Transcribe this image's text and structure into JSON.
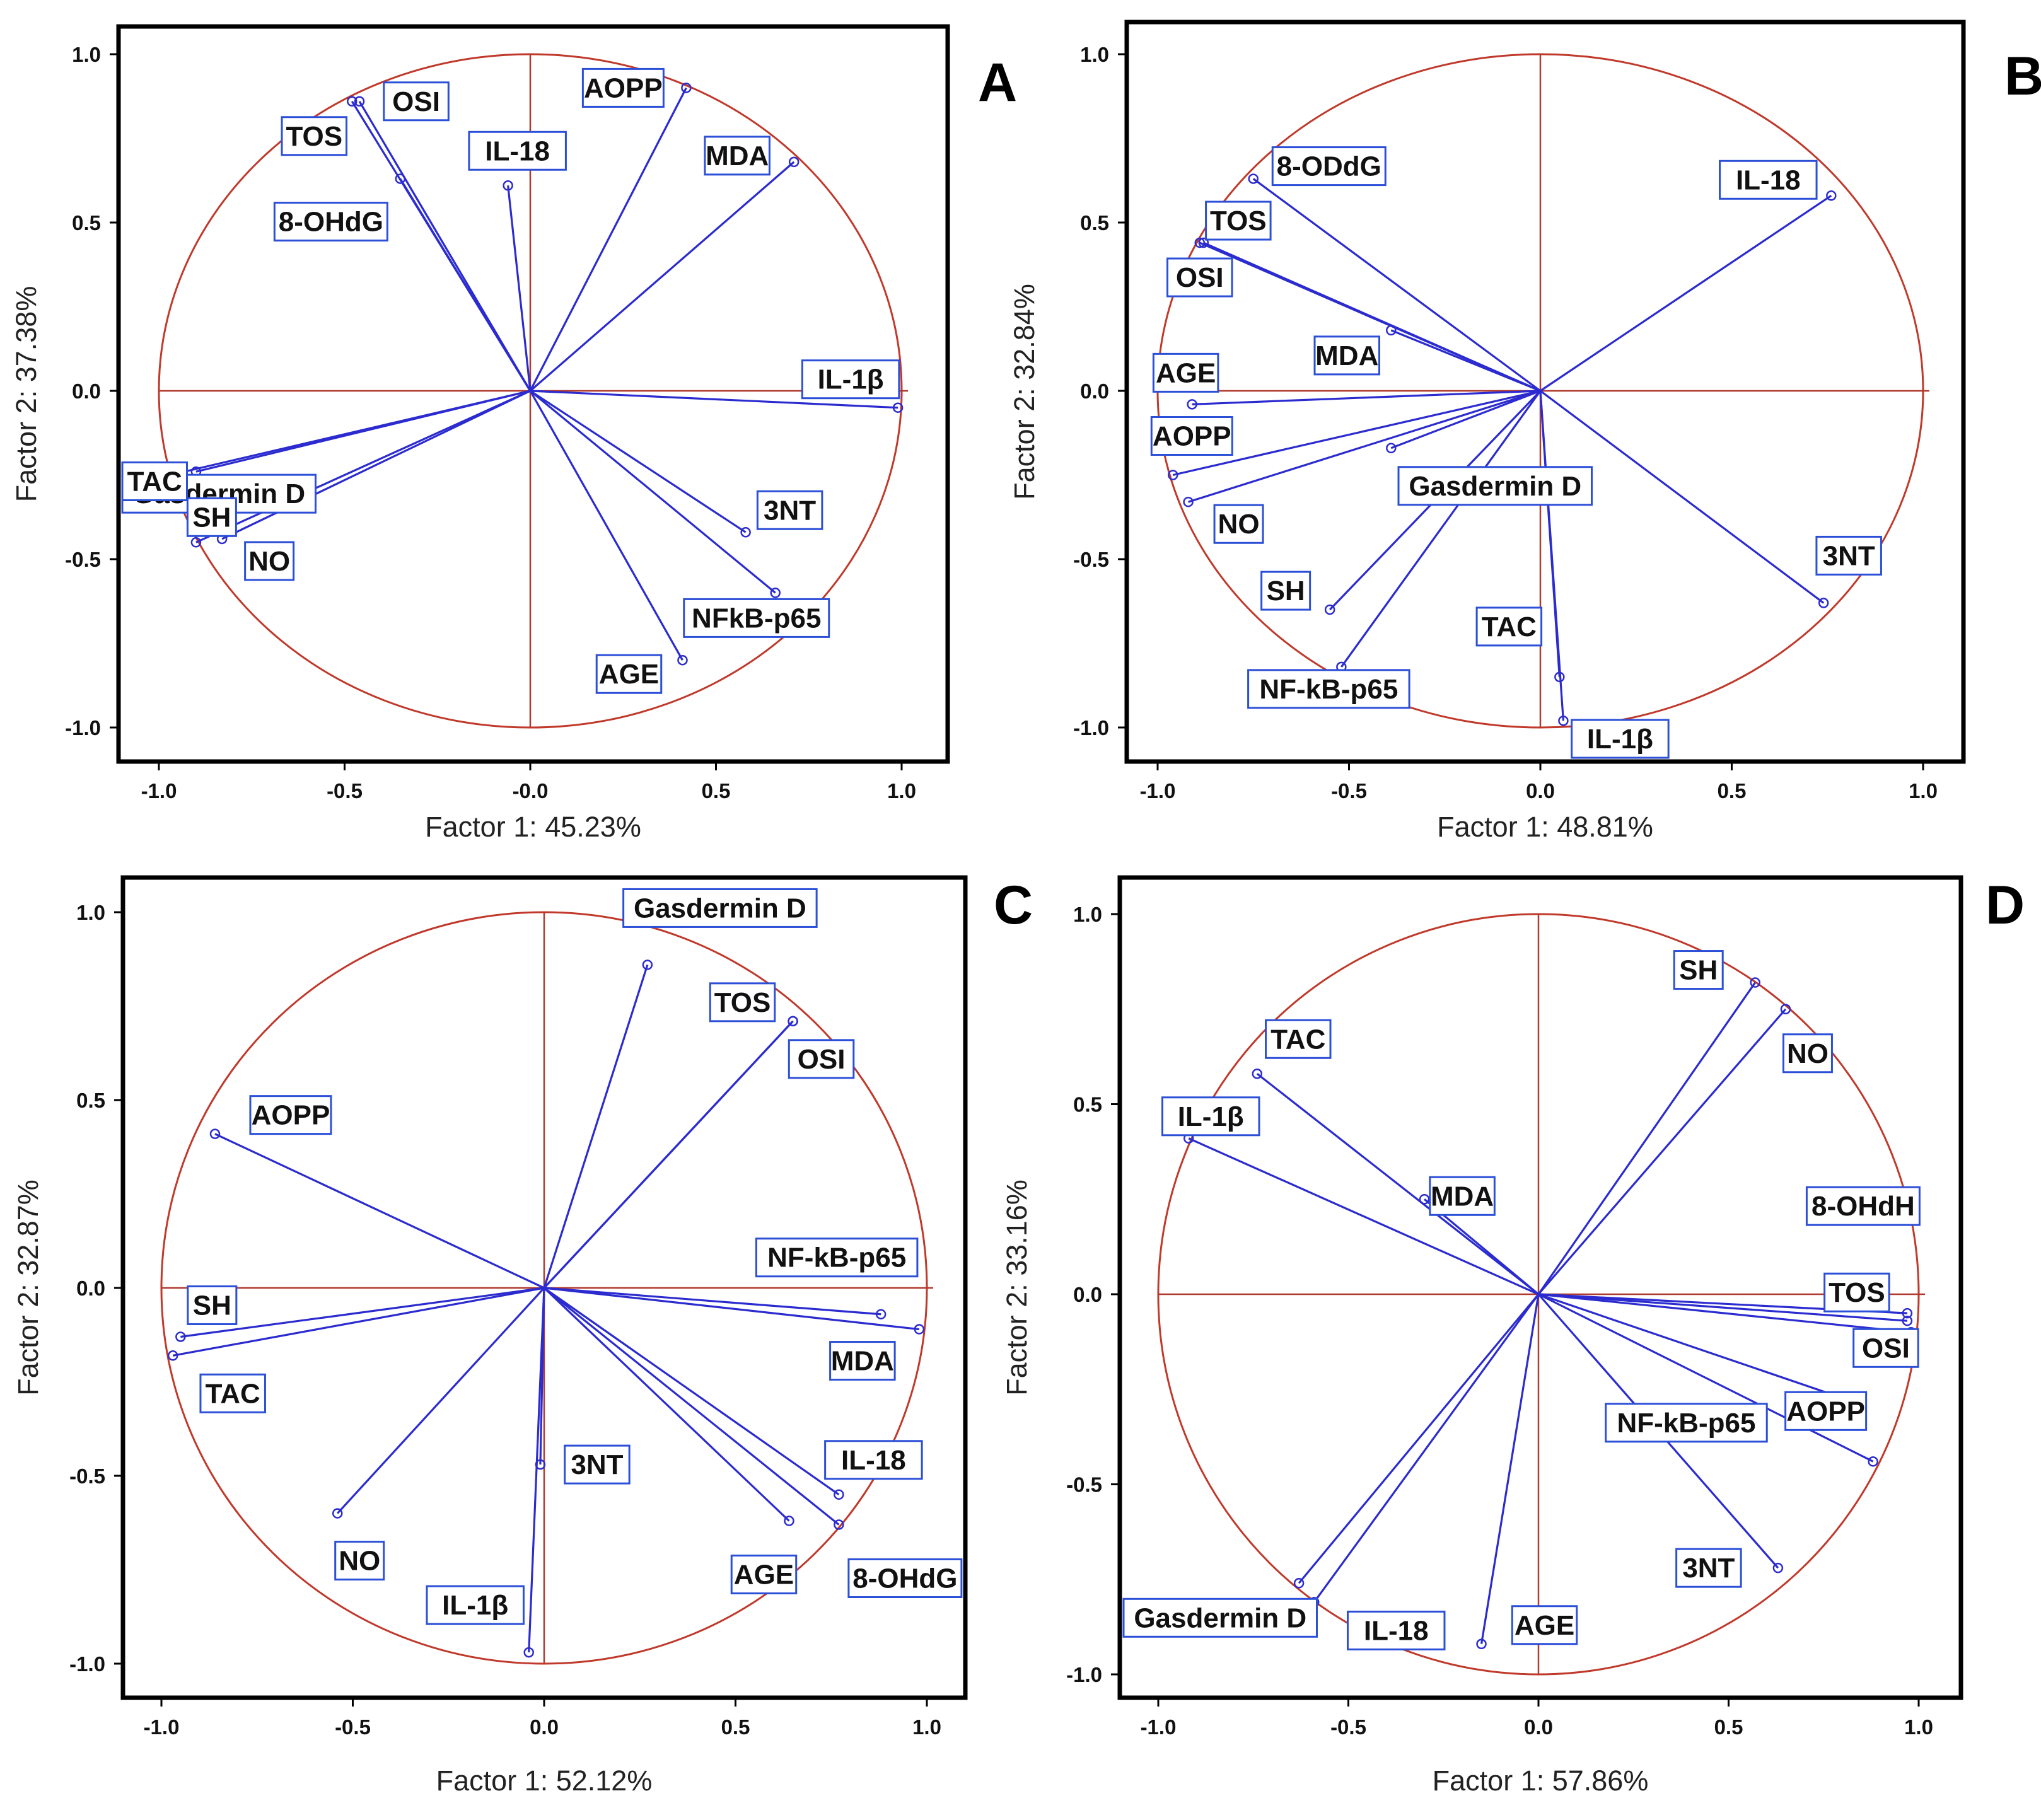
{
  "figure_title": "",
  "colors": {
    "circle": "#c0392b",
    "axis_cross": "#b03a2e",
    "vector": "#2b2bd0",
    "label_border": "#2c4fd8",
    "frame": "#000000"
  },
  "chart_data": [
    {
      "panel": "A",
      "type": "scatter",
      "subtype": "pca-correlation-circle",
      "xlabel": "Factor 1: 45.23%",
      "ylabel": "Factor 2: 37.38%",
      "xlim": [
        -1.0,
        1.0
      ],
      "ylim": [
        -1.0,
        1.0
      ],
      "xticks": [
        "-1.0",
        "-0.5",
        "-0.0",
        "0.5",
        "1.0"
      ],
      "yticks": [
        "1.0",
        "0.5",
        "0.0",
        "-0.5",
        "-1.0"
      ],
      "variables": [
        {
          "name": "OSI",
          "x": -0.46,
          "y": 0.86
        },
        {
          "name": "TOS",
          "x": -0.48,
          "y": 0.86
        },
        {
          "name": "8-OHdG",
          "x": -0.35,
          "y": 0.63
        },
        {
          "name": "IL-18",
          "x": -0.06,
          "y": 0.61
        },
        {
          "name": "AOPP",
          "x": 0.42,
          "y": 0.9
        },
        {
          "name": "MDA",
          "x": 0.71,
          "y": 0.68
        },
        {
          "name": "IL-1β",
          "x": 0.99,
          "y": -0.05
        },
        {
          "name": "Gasdermin D",
          "x": -0.9,
          "y": -0.24
        },
        {
          "name": "TAC",
          "x": -0.97,
          "y": -0.25
        },
        {
          "name": "SH",
          "x": -0.9,
          "y": -0.45
        },
        {
          "name": "NO",
          "x": -0.83,
          "y": -0.44
        },
        {
          "name": "3NT",
          "x": 0.58,
          "y": -0.42
        },
        {
          "name": "NFkB-p65",
          "x": 0.66,
          "y": -0.6
        },
        {
          "name": "AGE",
          "x": 0.41,
          "y": -0.8
        }
      ]
    },
    {
      "panel": "B",
      "type": "scatter",
      "subtype": "pca-correlation-circle",
      "xlabel": "Factor 1: 48.81%",
      "ylabel": "Factor 2: 32.84%",
      "xlim": [
        -1.0,
        1.0
      ],
      "ylim": [
        -1.0,
        1.0
      ],
      "xticks": [
        "-1.0",
        "-0.5",
        "0.0",
        "0.5",
        "1.0"
      ],
      "yticks": [
        "1.0",
        "0.5",
        "0.0",
        "-0.5",
        "-1.0"
      ],
      "variables": [
        {
          "name": "8-ODdG",
          "x": -0.75,
          "y": 0.63
        },
        {
          "name": "IL-18",
          "x": 0.76,
          "y": 0.58
        },
        {
          "name": "TOS",
          "x": -0.88,
          "y": 0.44
        },
        {
          "name": "OSI",
          "x": -0.89,
          "y": 0.44
        },
        {
          "name": "MDA",
          "x": -0.39,
          "y": 0.18
        },
        {
          "name": "AGE",
          "x": -0.91,
          "y": -0.04
        },
        {
          "name": "AOPP",
          "x": -0.96,
          "y": -0.25
        },
        {
          "name": "Gasdermin D",
          "x": -0.39,
          "y": -0.17
        },
        {
          "name": "NO",
          "x": -0.92,
          "y": -0.33
        },
        {
          "name": "SH",
          "x": -0.55,
          "y": -0.65
        },
        {
          "name": "NF-kB-p65",
          "x": -0.52,
          "y": -0.82
        },
        {
          "name": "3NT",
          "x": 0.74,
          "y": -0.63
        },
        {
          "name": "TAC",
          "x": 0.05,
          "y": -0.85
        },
        {
          "name": "IL-1β",
          "x": 0.06,
          "y": -0.98
        }
      ]
    },
    {
      "panel": "C",
      "type": "scatter",
      "subtype": "pca-correlation-circle",
      "xlabel": "Factor 1: 52.12%",
      "ylabel": "Factor 2: 32.87%",
      "xlim": [
        -1.0,
        1.0
      ],
      "ylim": [
        -1.0,
        1.0
      ],
      "xticks": [
        "-1.0",
        "-0.5",
        "0.0",
        "0.5",
        "1.0"
      ],
      "yticks": [
        "1.0",
        "0.5",
        "0.0",
        "-0.5",
        "-1.0"
      ],
      "variables": [
        {
          "name": "Gasdermin D",
          "x": 0.27,
          "y": 0.86
        },
        {
          "name": "TOS",
          "x": 0.65,
          "y": 0.71
        },
        {
          "name": "OSI",
          "x": 0.65,
          "y": 0.71
        },
        {
          "name": "AOPP",
          "x": -0.86,
          "y": 0.41
        },
        {
          "name": "NF-kB-p65",
          "x": 0.88,
          "y": -0.07
        },
        {
          "name": "MDA",
          "x": 0.98,
          "y": -0.11
        },
        {
          "name": "SH",
          "x": -0.95,
          "y": -0.13
        },
        {
          "name": "TAC",
          "x": -0.97,
          "y": -0.18
        },
        {
          "name": "3NT",
          "x": -0.01,
          "y": -0.47
        },
        {
          "name": "IL-18",
          "x": 0.77,
          "y": -0.55
        },
        {
          "name": "8-OHdG",
          "x": 0.77,
          "y": -0.63
        },
        {
          "name": "AGE",
          "x": 0.64,
          "y": -0.62
        },
        {
          "name": "NO",
          "x": -0.54,
          "y": -0.6
        },
        {
          "name": "IL-1β",
          "x": -0.04,
          "y": -0.97
        }
      ]
    },
    {
      "panel": "D",
      "type": "scatter",
      "subtype": "pca-correlation-circle",
      "xlabel": "Factor 1: 57.86%",
      "ylabel": "Factor 2: 33.16%",
      "xlim": [
        -1.0,
        1.0
      ],
      "ylim": [
        -1.0,
        1.0
      ],
      "xticks": [
        "-1.0",
        "-0.5",
        "0.0",
        "0.5",
        "1.0"
      ],
      "yticks": [
        "1.0",
        "0.5",
        "0.0",
        "-0.5",
        "-1.0"
      ],
      "variables": [
        {
          "name": "SH",
          "x": 0.57,
          "y": 0.82
        },
        {
          "name": "NO",
          "x": 0.65,
          "y": 0.75
        },
        {
          "name": "TAC",
          "x": -0.74,
          "y": 0.58
        },
        {
          "name": "IL-1β",
          "x": -0.92,
          "y": 0.41
        },
        {
          "name": "MDA",
          "x": -0.3,
          "y": 0.25
        },
        {
          "name": "8-OHdH",
          "x": 0.97,
          "y": -0.05
        },
        {
          "name": "TOS",
          "x": 0.97,
          "y": -0.07
        },
        {
          "name": "OSI",
          "x": 0.98,
          "y": -0.1
        },
        {
          "name": "NF-kB-p65",
          "x": 0.82,
          "y": -0.28
        },
        {
          "name": "AOPP",
          "x": 0.88,
          "y": -0.44
        },
        {
          "name": "3NT",
          "x": 0.63,
          "y": -0.72
        },
        {
          "name": "Gasdermin D",
          "x": -0.63,
          "y": -0.76
        },
        {
          "name": "IL-18",
          "x": -0.59,
          "y": -0.81
        },
        {
          "name": "AGE",
          "x": -0.15,
          "y": -0.92
        }
      ]
    }
  ]
}
